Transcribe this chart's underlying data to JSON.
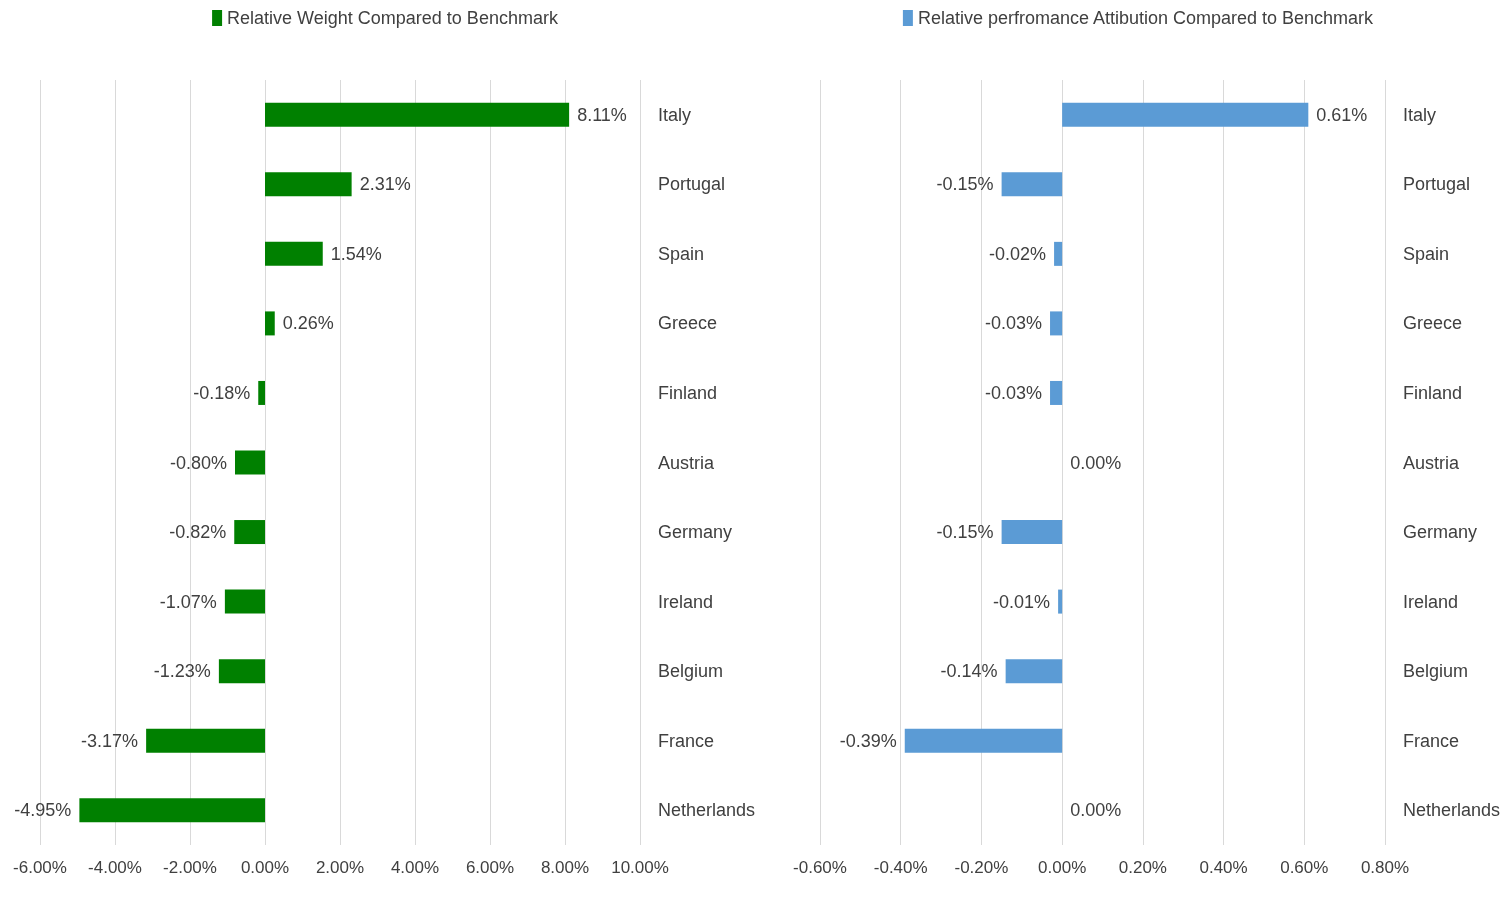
{
  "chart_data": [
    {
      "type": "bar",
      "orientation": "horizontal",
      "categories": [
        "Italy",
        "Portugal",
        "Spain",
        "Greece",
        "Finland",
        "Austria",
        "Germany",
        "Ireland",
        "Belgium",
        "France",
        "Netherlands"
      ],
      "series": [
        {
          "name": "Relative Weight Compared to Benchmark",
          "color": "#008000",
          "values": [
            8.11,
            2.31,
            1.54,
            0.26,
            -0.18,
            -0.8,
            -0.82,
            -1.07,
            -1.23,
            -3.17,
            -4.95
          ],
          "value_labels": [
            "8.11%",
            "2.31%",
            "1.54%",
            "0.26%",
            "-0.18%",
            "-0.80%",
            "-0.82%",
            "-1.07%",
            "-1.23%",
            "-3.17%",
            "-4.95%"
          ]
        }
      ],
      "xlim": [
        -6,
        10
      ],
      "xticks": [
        {
          "value": -6,
          "label": "-6.00%"
        },
        {
          "value": -4,
          "label": "-4.00%"
        },
        {
          "value": -2,
          "label": "-2.00%"
        },
        {
          "value": 0,
          "label": "0.00%"
        },
        {
          "value": 2,
          "label": "2.00%"
        },
        {
          "value": 4,
          "label": "4.00%"
        },
        {
          "value": 6,
          "label": "6.00%"
        },
        {
          "value": 8,
          "label": "8.00%"
        },
        {
          "value": 10,
          "label": "10.00%"
        }
      ],
      "grid": "x",
      "legend": "top"
    },
    {
      "type": "bar",
      "orientation": "horizontal",
      "categories": [
        "Italy",
        "Portugal",
        "Spain",
        "Greece",
        "Finland",
        "Austria",
        "Germany",
        "Ireland",
        "Belgium",
        "France",
        "Netherlands"
      ],
      "series": [
        {
          "name": "Relative perfromance Attibution Compared to Benchmark",
          "color": "#5b9bd5",
          "values": [
            0.61,
            -0.15,
            -0.02,
            -0.03,
            -0.03,
            0,
            -0.15,
            -0.01,
            -0.14,
            -0.39,
            0
          ],
          "value_labels": [
            "0.61%",
            "-0.15%",
            "-0.02%",
            "-0.03%",
            "-0.03%",
            "0.00%",
            "-0.15%",
            "-0.01%",
            "-0.14%",
            "-0.39%",
            "0.00%"
          ]
        }
      ],
      "xlim": [
        -0.6,
        0.8
      ],
      "xticks": [
        {
          "value": -0.6,
          "label": "-0.60%"
        },
        {
          "value": -0.4,
          "label": "-0.40%"
        },
        {
          "value": -0.2,
          "label": "-0.20%"
        },
        {
          "value": 0,
          "label": "0.00%"
        },
        {
          "value": 0.2,
          "label": "0.20%"
        },
        {
          "value": 0.4,
          "label": "0.40%"
        },
        {
          "value": 0.6,
          "label": "0.60%"
        },
        {
          "value": 0.8,
          "label": "0.80%"
        }
      ],
      "grid": "x",
      "legend": "top"
    }
  ]
}
